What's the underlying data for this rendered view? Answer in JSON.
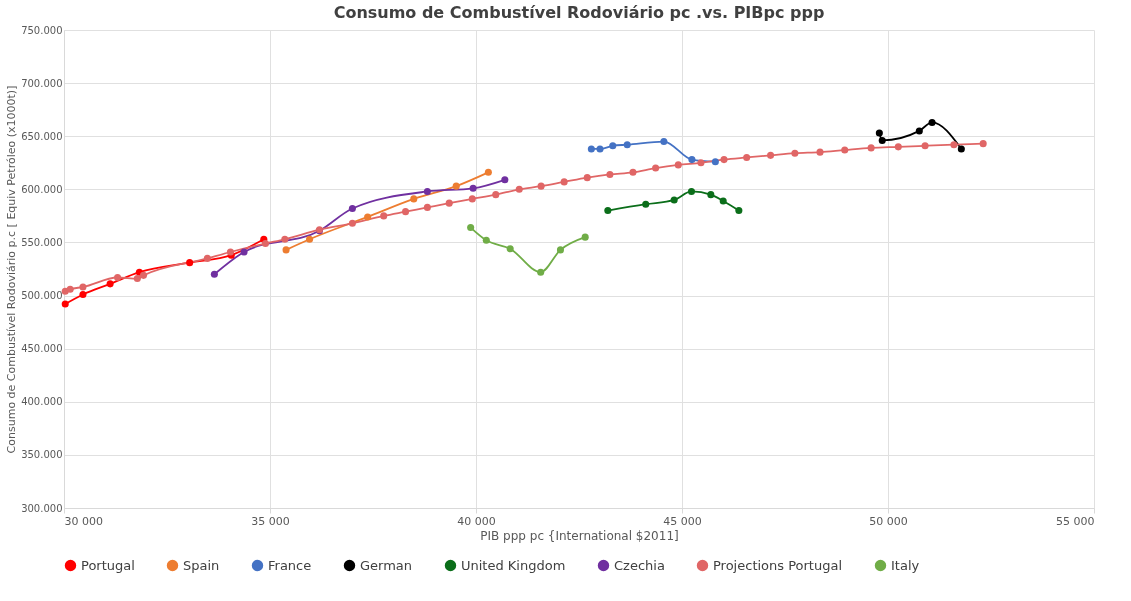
{
  "chart_data": {
    "type": "line",
    "title": "Consumo de Combustível Rodoviário pc .vs. PIBpc ppp",
    "xlabel": "PIB ppp pc {International $2011]",
    "ylabel": "Consumo de Combustível Rodoviário p.c [  Equiv Petróleo (x1000t)]",
    "xlim": [
      30000,
      55000
    ],
    "xticks": [
      {
        "value": 30000,
        "label": "30 000"
      },
      {
        "value": 35000,
        "label": "35 000"
      },
      {
        "value": 40000,
        "label": "40 000"
      },
      {
        "value": 45000,
        "label": "45 000"
      },
      {
        "value": 50000,
        "label": "50 000"
      },
      {
        "value": 55000,
        "label": "55 000"
      }
    ],
    "ylim": [
      300,
      750
    ],
    "yticks": [
      {
        "value": 300,
        "label": "300.000"
      },
      {
        "value": 350,
        "label": "350.000"
      },
      {
        "value": 400,
        "label": "400.000"
      },
      {
        "value": 450,
        "label": "450.000"
      },
      {
        "value": 500,
        "label": "500.000"
      },
      {
        "value": 550,
        "label": "550.000"
      },
      {
        "value": 600,
        "label": "600.000"
      },
      {
        "value": 650,
        "label": "650.000"
      },
      {
        "value": 700,
        "label": "700.000"
      },
      {
        "value": 750,
        "label": "750.000"
      }
    ],
    "grid": true,
    "legend": "bottom",
    "marker": "circle",
    "line_style": "solid",
    "series": [
      {
        "name": "Portugal",
        "color": "#ff0000",
        "x": [
          30030,
          30460,
          31120,
          31830,
          33050,
          34060,
          34850
        ],
        "values": [
          492,
          501,
          511,
          522,
          531,
          538,
          553
        ]
      },
      {
        "name": "Spain",
        "color": "#ed7d31",
        "x": [
          35390,
          35960,
          37370,
          38490,
          39520,
          40300
        ],
        "values": [
          543,
          553,
          574,
          591,
          603,
          616
        ]
      },
      {
        "name": "France",
        "color": "#4472c4",
        "x": [
          42800,
          43010,
          43320,
          43670,
          44560,
          45240,
          45810
        ],
        "values": [
          638,
          638,
          641,
          642,
          645,
          628,
          626
        ]
      },
      {
        "name": "German",
        "color": "#000000",
        "x": [
          49790,
          49860,
          50760,
          51070,
          51780
        ],
        "values": [
          653,
          646,
          655,
          663,
          638
        ]
      },
      {
        "name": "United Kingdom",
        "color": "#0b6e1a",
        "x": [
          43200,
          44120,
          44810,
          45230,
          45700,
          46000,
          46380
        ],
        "values": [
          580,
          586,
          590,
          598,
          595,
          589,
          580
        ]
      },
      {
        "name": "Czechia",
        "color": "#7030a0",
        "x": [
          33650,
          34370,
          36200,
          37000,
          38820,
          39930,
          40700
        ],
        "values": [
          520,
          541,
          561,
          582,
          598,
          601,
          609
        ]
      },
      {
        "name": "Projections Portugal",
        "color": "#e06666",
        "x": [
          30030,
          30150,
          30460,
          31300,
          31780,
          31930,
          33480,
          34040,
          34890,
          35360,
          36200,
          37000,
          37760,
          38290,
          38820,
          39350,
          39910,
          40480,
          41050,
          41580,
          42140,
          42700,
          43250,
          43810,
          44360,
          44910,
          45460,
          46020,
          46570,
          47150,
          47740,
          48350,
          48950,
          49590,
          50250,
          50900,
          51600,
          52310
        ],
        "values": [
          504,
          506,
          508,
          517,
          516,
          519,
          535,
          541,
          549,
          553,
          562,
          568,
          575,
          579,
          583,
          587,
          591,
          595,
          600,
          603,
          607,
          611,
          614,
          616,
          620,
          623,
          625,
          628,
          630,
          632,
          634,
          635,
          637,
          639,
          640,
          641,
          642,
          643
        ]
      },
      {
        "name": "Italy",
        "color": "#70ad47",
        "x": [
          39870,
          40250,
          40830,
          41570,
          42050,
          42650
        ],
        "values": [
          564,
          552,
          544,
          522,
          543,
          555
        ]
      }
    ]
  }
}
